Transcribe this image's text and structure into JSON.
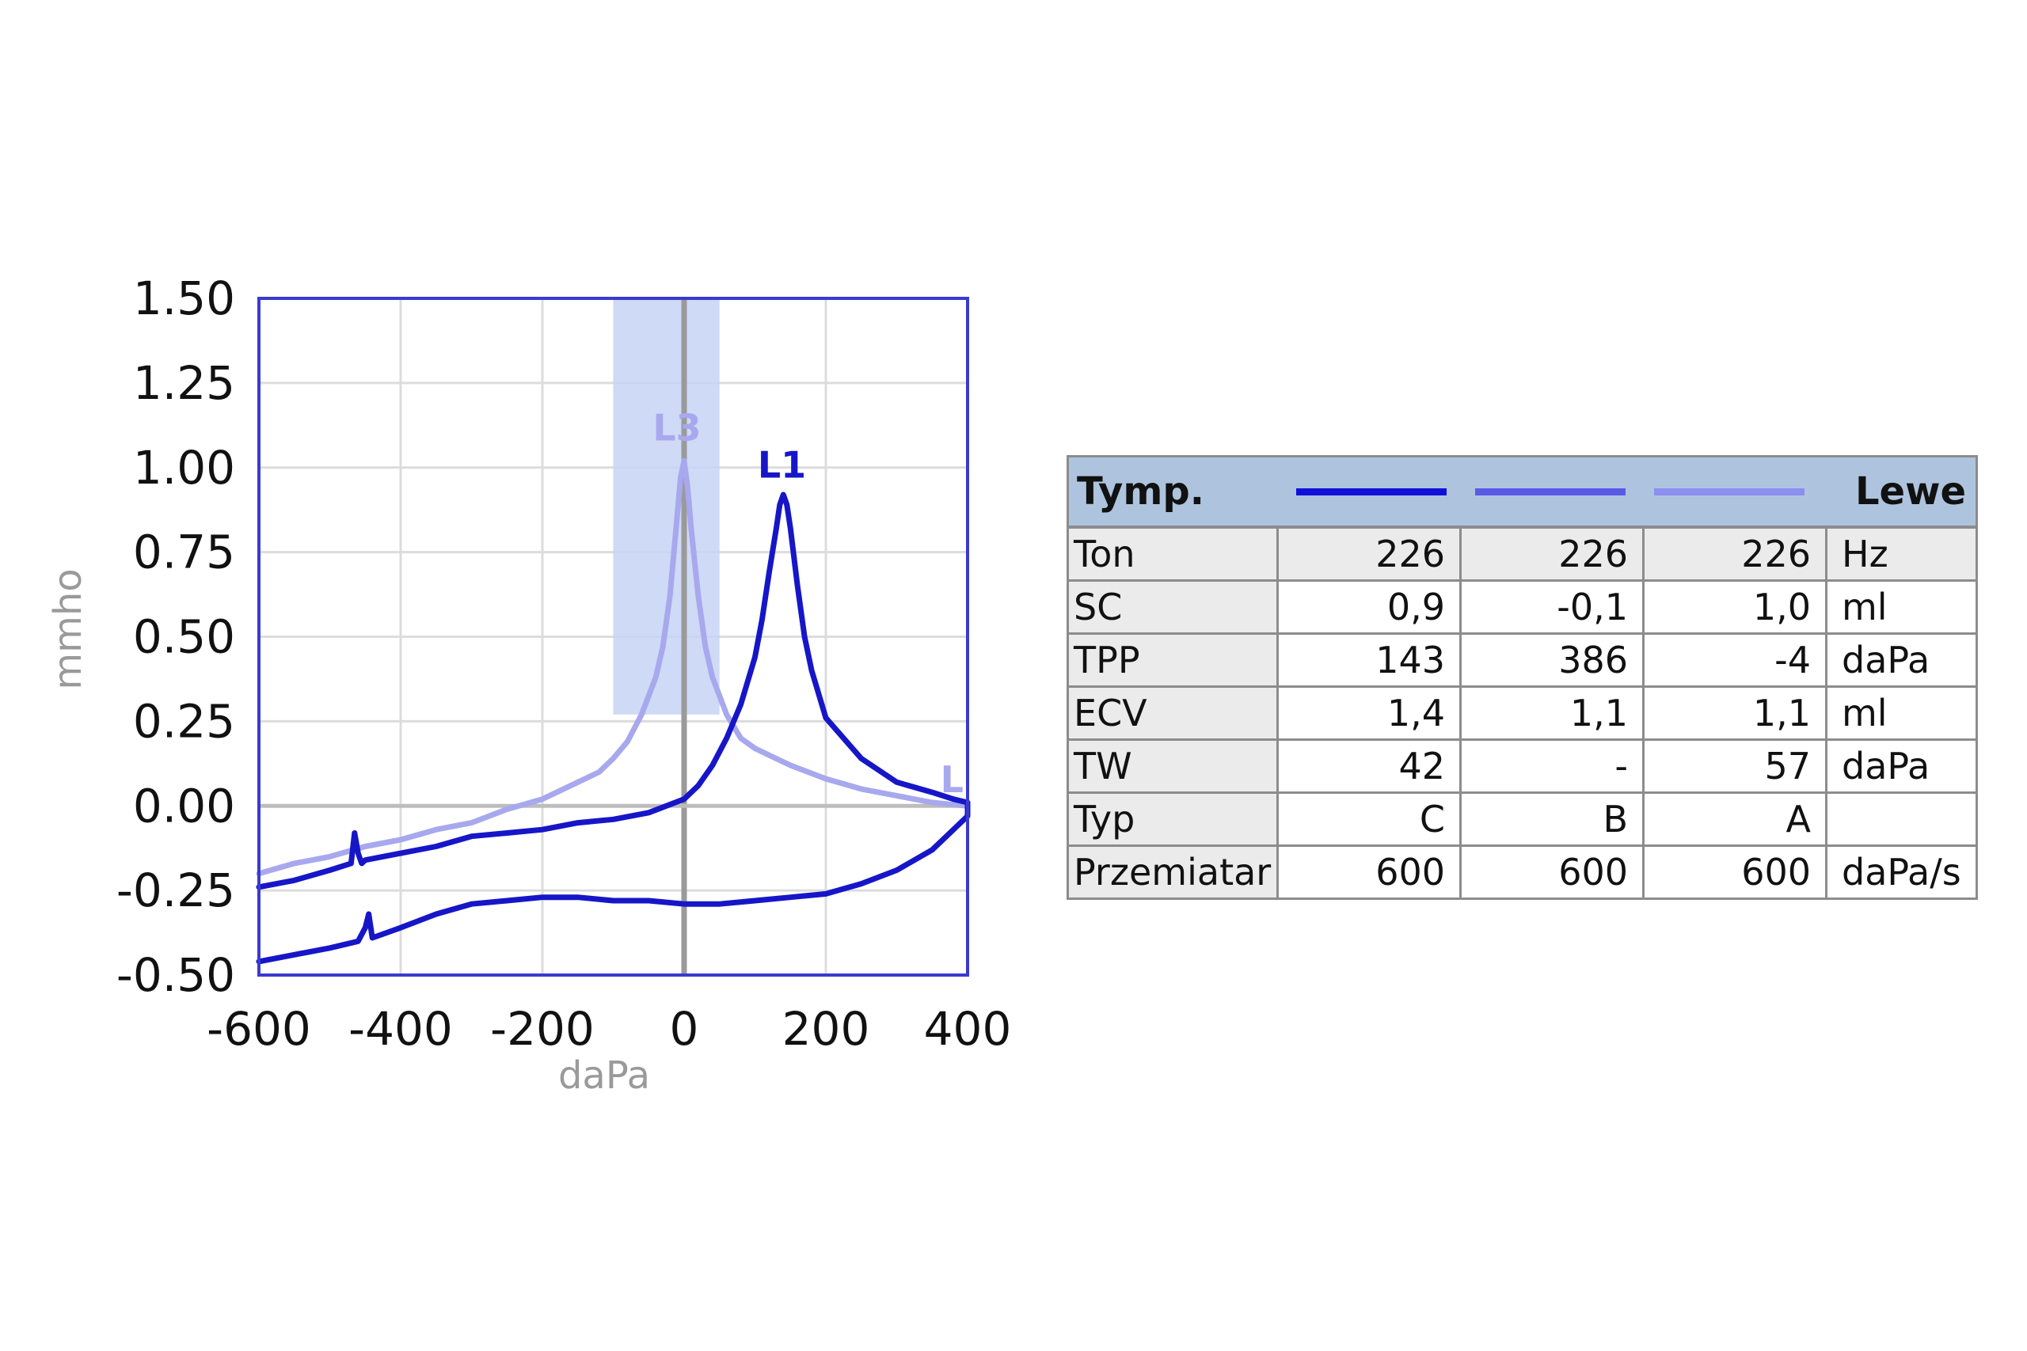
{
  "chart_data": {
    "type": "line",
    "xlabel": "daPa",
    "ylabel": "mmho",
    "xlim": [
      -600,
      400
    ],
    "ylim": [
      -0.5,
      1.5
    ],
    "x_ticks": [
      -600,
      -400,
      -200,
      0,
      200,
      400
    ],
    "x_tick_labels": [
      "-600",
      "-400",
      "-200",
      "0",
      "200",
      "400"
    ],
    "y_ticks": [
      1.5,
      1.25,
      1.0,
      0.75,
      0.5,
      0.25,
      0.0,
      -0.25,
      -0.5
    ],
    "y_tick_labels": [
      "1.50",
      "1.25",
      "1.00",
      "0.75",
      "0.50",
      "0.25",
      "0.00",
      "-0.25",
      "-0.50"
    ],
    "grid": true,
    "shaded_region": {
      "x": [
        -100,
        50
      ],
      "y": [
        0.27,
        1.5
      ],
      "color": "#c7d3f5"
    },
    "series": [
      {
        "name": "L3",
        "color": "#a8a8ee",
        "x": [
          -600,
          -550,
          -500,
          -450,
          -400,
          -350,
          -300,
          -250,
          -200,
          -150,
          -120,
          -100,
          -80,
          -60,
          -40,
          -30,
          -20,
          -10,
          -5,
          0,
          5,
          10,
          20,
          30,
          40,
          60,
          80,
          100,
          150,
          200,
          250,
          300,
          350,
          400
        ],
        "y": [
          -0.2,
          -0.17,
          -0.15,
          -0.12,
          -0.1,
          -0.07,
          -0.05,
          -0.01,
          0.02,
          0.07,
          0.1,
          0.14,
          0.19,
          0.27,
          0.38,
          0.47,
          0.62,
          0.85,
          0.97,
          1.02,
          0.94,
          0.82,
          0.62,
          0.47,
          0.38,
          0.27,
          0.2,
          0.17,
          0.12,
          0.08,
          0.05,
          0.03,
          0.01,
          0.0
        ]
      },
      {
        "name": "L1",
        "color": "#1616c8",
        "x": [
          -600,
          -550,
          -500,
          -470,
          -465,
          -460,
          -455,
          -450,
          -400,
          -350,
          -300,
          -250,
          -200,
          -150,
          -100,
          -50,
          0,
          20,
          40,
          60,
          80,
          100,
          110,
          120,
          130,
          135,
          140,
          145,
          150,
          160,
          170,
          180,
          200,
          250,
          300,
          350,
          380,
          400,
          400,
          350,
          300,
          250,
          200,
          150,
          100,
          50,
          0,
          -50,
          -100,
          -150,
          -200,
          -250,
          -300,
          -350,
          -400,
          -440,
          -445,
          -450,
          -455,
          -460,
          -500,
          -550,
          -600
        ],
        "y": [
          -0.24,
          -0.22,
          -0.19,
          -0.17,
          -0.08,
          -0.14,
          -0.17,
          -0.16,
          -0.14,
          -0.12,
          -0.09,
          -0.08,
          -0.07,
          -0.05,
          -0.04,
          -0.02,
          0.02,
          0.06,
          0.12,
          0.2,
          0.3,
          0.44,
          0.55,
          0.69,
          0.82,
          0.89,
          0.92,
          0.89,
          0.82,
          0.65,
          0.5,
          0.4,
          0.26,
          0.14,
          0.07,
          0.04,
          0.02,
          0.01,
          -0.03,
          -0.13,
          -0.19,
          -0.23,
          -0.26,
          -0.27,
          -0.28,
          -0.29,
          -0.29,
          -0.28,
          -0.28,
          -0.27,
          -0.27,
          -0.28,
          -0.29,
          -0.32,
          -0.36,
          -0.39,
          -0.32,
          -0.36,
          -0.38,
          -0.4,
          -0.42,
          -0.44,
          -0.46
        ]
      }
    ],
    "labels": [
      {
        "text": "L3",
        "x": -10,
        "y": 1.08,
        "color": "#a8a8ee"
      },
      {
        "text": "L1",
        "x": 138,
        "y": 0.97,
        "color": "#1616c8"
      },
      {
        "text": "L",
        "x": 378,
        "y": 0.04,
        "color": "#a8a8ee"
      }
    ]
  },
  "table": {
    "header": {
      "title": "Tymp.",
      "ear": "Lewe",
      "line_colors": [
        "#1010d8",
        "#5a5ae6",
        "#8c8ef0"
      ]
    },
    "rows": [
      {
        "label": "Ton",
        "v1": "226",
        "v2": "226",
        "v3": "226",
        "unit": "Hz"
      },
      {
        "label": "SC",
        "v1": "0,9",
        "v2": "-0,1",
        "v3": "1,0",
        "unit": "ml"
      },
      {
        "label": "TPP",
        "v1": "143",
        "v2": "386",
        "v3": "-4",
        "unit": "daPa"
      },
      {
        "label": "ECV",
        "v1": "1,4",
        "v2": "1,1",
        "v3": "1,1",
        "unit": "ml"
      },
      {
        "label": "TW",
        "v1": "42",
        "v2": "-",
        "v3": "57",
        "unit": "daPa"
      },
      {
        "label": "Typ",
        "v1": "C",
        "v2": "B",
        "v3": "A",
        "unit": ""
      },
      {
        "label": "Przemiatar",
        "v1": "600",
        "v2": "600",
        "v3": "600",
        "unit": "daPa/s"
      }
    ]
  }
}
